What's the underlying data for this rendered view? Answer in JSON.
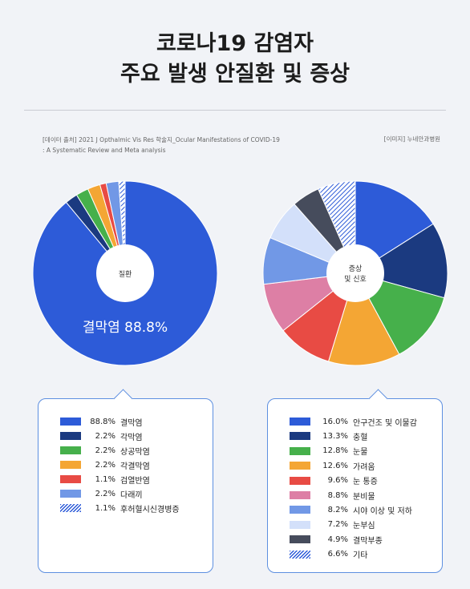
{
  "title_line1": "코로나19 감염자",
  "title_line2": "주요 발생 안질환 및 증상",
  "source_line1": "[데이터 출처] 2021 J Opthalmic Vis Res 학술지_Ocular Manifestations of COVID-19",
  "source_line2": ": A Systematic Review and Meta analysis",
  "credit": "[이미지] 누네안과병원",
  "chart_data": [
    {
      "type": "pie",
      "center_label": "질환",
      "annotation": "결막염 88.8%",
      "slices": [
        {
          "label": "결막염",
          "value": 88.8,
          "pct_text": "88.8%",
          "color": "#2d5bd8"
        },
        {
          "label": "각막염",
          "value": 2.2,
          "pct_text": "2.2%",
          "color": "#1b3a80"
        },
        {
          "label": "상공막염",
          "value": 2.2,
          "pct_text": "2.2%",
          "color": "#46b04b"
        },
        {
          "label": "각결막염",
          "value": 2.2,
          "pct_text": "2.2%",
          "color": "#f4a634"
        },
        {
          "label": "검열반염",
          "value": 1.1,
          "pct_text": "1.1%",
          "color": "#e84b44"
        },
        {
          "label": "다래끼",
          "value": 2.2,
          "pct_text": "2.2%",
          "color": "#7198e6"
        },
        {
          "label": "후허혈시신경병증",
          "value": 1.1,
          "pct_text": "1.1%",
          "color": "hatch"
        }
      ]
    },
    {
      "type": "pie",
      "center_label_1": "증상",
      "center_label_2": "및 신호",
      "slices": [
        {
          "label": "안구건조 및 이물감",
          "value": 16.0,
          "pct_text": "16.0%",
          "color": "#2d5bd8"
        },
        {
          "label": "충혈",
          "value": 13.3,
          "pct_text": "13.3%",
          "color": "#1b3a80"
        },
        {
          "label": "눈물",
          "value": 12.8,
          "pct_text": "12.8%",
          "color": "#46b04b"
        },
        {
          "label": "가려움",
          "value": 12.6,
          "pct_text": "12.6%",
          "color": "#f4a634"
        },
        {
          "label": "눈 통증",
          "value": 9.6,
          "pct_text": "9.6%",
          "color": "#e84b44"
        },
        {
          "label": "분비물",
          "value": 8.8,
          "pct_text": "8.8%",
          "color": "#dd7fa5"
        },
        {
          "label": "시야 이상 및 저하",
          "value": 8.2,
          "pct_text": "8.2%",
          "color": "#7198e6"
        },
        {
          "label": "눈부심",
          "value": 7.2,
          "pct_text": "7.2%",
          "color": "#d3e0fa"
        },
        {
          "label": "결막부종",
          "value": 4.9,
          "pct_text": "4.9%",
          "color": "#464c5c"
        },
        {
          "label": "기타",
          "value": 6.6,
          "pct_text": "6.6%",
          "color": "hatch"
        }
      ]
    }
  ]
}
